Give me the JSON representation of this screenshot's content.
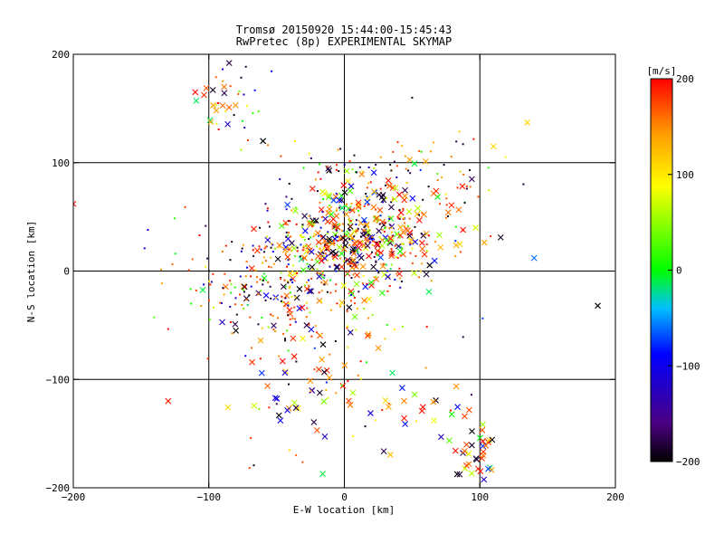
{
  "chart_data": {
    "type": "scatter",
    "title": "Tromsø 20150920 15:44:00-15:45:43",
    "subtitle": "RwPretec (8p) EXPERIMENTAL SKYMAP",
    "xlabel": "E-W location [km]",
    "ylabel": "N-S location [km]",
    "xlim": [
      -200,
      200
    ],
    "ylim": [
      -200,
      200
    ],
    "xticks": [
      -200,
      -100,
      0,
      100,
      200
    ],
    "yticks": [
      -200,
      -100,
      0,
      100,
      200
    ],
    "grid": true,
    "marker_types": [
      "cross",
      "dot"
    ],
    "colorbar": {
      "label": "[m/s]",
      "range": [
        -200,
        200
      ],
      "ticks": [
        200,
        100,
        0,
        -100,
        -200
      ],
      "colormap": [
        "#000000",
        "#4b0082",
        "#0000ff",
        "#00bfff",
        "#00ff00",
        "#ffff00",
        "#ff9900",
        "#ff0000"
      ],
      "colormap_positions": [
        0,
        0.1,
        0.28,
        0.4,
        0.5,
        0.72,
        0.86,
        1
      ]
    },
    "clusters": [
      {
        "marker": "cross",
        "center": [
          10,
          27
        ],
        "spread": [
          28,
          18
        ],
        "count": 160
      },
      {
        "marker": "dot",
        "center": [
          8,
          30
        ],
        "spread": [
          30,
          20
        ],
        "count": 260
      },
      {
        "marker": "cross",
        "center": [
          -28,
          -10
        ],
        "spread": [
          32,
          30
        ],
        "count": 70
      },
      {
        "marker": "dot",
        "center": [
          -50,
          -5
        ],
        "spread": [
          38,
          30
        ],
        "count": 220
      },
      {
        "marker": "cross",
        "center": [
          15,
          75
        ],
        "spread": [
          25,
          12
        ],
        "count": 40
      },
      {
        "marker": "dot",
        "center": [
          20,
          95
        ],
        "spread": [
          35,
          12
        ],
        "count": 60
      },
      {
        "marker": "cross",
        "center": [
          95,
          -170
        ],
        "spread": [
          10,
          14
        ],
        "count": 35
      },
      {
        "marker": "cross",
        "center": [
          50,
          -120
        ],
        "spread": [
          30,
          25
        ],
        "count": 25
      },
      {
        "marker": "cross",
        "center": [
          -90,
          155
        ],
        "spread": [
          10,
          10
        ],
        "count": 14
      },
      {
        "marker": "dot",
        "center": [
          -80,
          155
        ],
        "spread": [
          12,
          20
        ],
        "count": 25
      },
      {
        "marker": "cross",
        "center": [
          -40,
          -110
        ],
        "spread": [
          25,
          25
        ],
        "count": 35
      },
      {
        "marker": "dot",
        "center": [
          80,
          60
        ],
        "spread": [
          20,
          30
        ],
        "count": 30
      },
      {
        "marker": "cross",
        "center": [
          60,
          40
        ],
        "spread": [
          30,
          25
        ],
        "count": 30
      },
      {
        "marker": "dot",
        "center": [
          0,
          -80
        ],
        "spread": [
          40,
          40
        ],
        "count": 60
      }
    ],
    "notable_points": [
      {
        "x": -85,
        "y": 192,
        "v": -180,
        "marker": "cross"
      },
      {
        "x": -110,
        "y": 165,
        "v": 200,
        "marker": "cross"
      },
      {
        "x": 135,
        "y": 137,
        "v": 110,
        "marker": "cross"
      },
      {
        "x": 187,
        "y": -32,
        "v": -200,
        "marker": "cross"
      },
      {
        "x": -130,
        "y": -120,
        "v": 190,
        "marker": "cross"
      },
      {
        "x": 140,
        "y": 12,
        "v": -60,
        "marker": "cross"
      },
      {
        "x": -145,
        "y": 38,
        "v": -100,
        "marker": "dot"
      },
      {
        "x": -200,
        "y": 62,
        "v": 200,
        "marker": "cross"
      },
      {
        "x": -60,
        "y": 120,
        "v": -200,
        "marker": "cross"
      },
      {
        "x": 50,
        "y": 160,
        "v": -200,
        "marker": "dot"
      },
      {
        "x": 110,
        "y": 115,
        "v": 110,
        "marker": "cross"
      },
      {
        "x": -80,
        "y": -55,
        "v": -200,
        "marker": "cross"
      }
    ]
  }
}
